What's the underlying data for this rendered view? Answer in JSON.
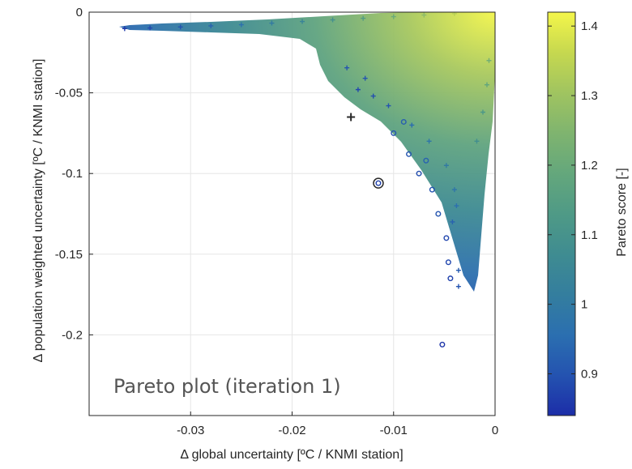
{
  "chart_data": {
    "type": "scatter",
    "title": "Pareto plot (iteration 1)",
    "xlabel": "Δ global uncertainty [ºC / KNMI station]",
    "ylabel": "Δ population weighted uncertainty [ºC / KNMI station]",
    "xlim": [
      -0.04,
      0
    ],
    "ylim": [
      -0.25,
      0
    ],
    "xticks": [
      -0.03,
      -0.02,
      -0.01,
      0
    ],
    "xtick_labels": [
      "-0.03",
      "-0.02",
      "-0.01",
      "0"
    ],
    "yticks": [
      0,
      -0.05,
      -0.1,
      -0.15,
      -0.2
    ],
    "ytick_labels": [
      "0",
      "-0.05",
      "-0.1",
      "-0.15",
      "-0.2"
    ],
    "grid": true,
    "colorbar": {
      "label": "Pareto score [-]",
      "range": [
        0.84,
        1.42
      ],
      "ticks": [
        0.9,
        1,
        1.1,
        1.2,
        1.3,
        1.4
      ],
      "tick_labels": [
        "0.9",
        "1",
        "1.1",
        "1.2",
        "1.3",
        "1.4"
      ],
      "colormap": [
        "#1c2da8",
        "#2453b0",
        "#2b6fb0",
        "#347e9e",
        "#3f8c91",
        "#4f9a86",
        "#64a77c",
        "#7fb46f",
        "#a0c460",
        "#c6d84f",
        "#f4f64a"
      ]
    },
    "series": [
      {
        "marker": "+",
        "values": [
          [
            -0.0365,
            -0.0102,
            0.86
          ],
          [
            -0.034,
            -0.0098,
            0.88
          ],
          [
            -0.031,
            -0.0092,
            0.9
          ],
          [
            -0.028,
            -0.0085,
            0.93
          ],
          [
            -0.025,
            -0.0078,
            0.96
          ],
          [
            -0.022,
            -0.0068,
            1.0
          ],
          [
            -0.019,
            -0.0058,
            1.04
          ],
          [
            -0.016,
            -0.0048,
            1.09
          ],
          [
            -0.013,
            -0.0038,
            1.14
          ],
          [
            -0.01,
            -0.0028,
            1.2
          ],
          [
            -0.007,
            -0.0018,
            1.27
          ],
          [
            -0.004,
            -0.0009,
            1.34
          ],
          [
            -0.0146,
            -0.0345,
            0.9
          ],
          [
            -0.0128,
            -0.041,
            0.9
          ],
          [
            -0.0135,
            -0.048,
            0.88
          ],
          [
            -0.012,
            -0.052,
            0.89
          ],
          [
            -0.0142,
            -0.065,
            0.86
          ],
          [
            -0.0105,
            -0.058,
            0.9
          ],
          [
            -0.0082,
            -0.07,
            0.95
          ],
          [
            -0.0065,
            -0.08,
            0.98
          ],
          [
            -0.0048,
            -0.095,
            1.0
          ],
          [
            -0.004,
            -0.11,
            0.98
          ],
          [
            -0.0038,
            -0.12,
            0.96
          ],
          [
            -0.0042,
            -0.13,
            0.93
          ],
          [
            -0.0036,
            -0.16,
            0.91
          ],
          [
            -0.0036,
            -0.17,
            0.9
          ],
          [
            -0.0018,
            -0.08,
            1.08
          ],
          [
            -0.0012,
            -0.062,
            1.12
          ],
          [
            -0.0008,
            -0.045,
            1.18
          ],
          [
            -0.0006,
            -0.03,
            1.22
          ]
        ]
      },
      {
        "marker": "o",
        "values": [
          [
            -0.0115,
            -0.106,
            0.87
          ],
          [
            -0.0052,
            -0.206,
            0.85
          ],
          [
            -0.01,
            -0.075,
            0.9
          ],
          [
            -0.0085,
            -0.088,
            0.9
          ],
          [
            -0.0075,
            -0.1,
            0.89
          ],
          [
            -0.0062,
            -0.11,
            0.9
          ],
          [
            -0.0056,
            -0.125,
            0.9
          ],
          [
            -0.0048,
            -0.14,
            0.88
          ],
          [
            -0.0046,
            -0.155,
            0.88
          ],
          [
            -0.0044,
            -0.165,
            0.87
          ],
          [
            -0.0068,
            -0.092,
            0.93
          ],
          [
            -0.009,
            -0.068,
            0.92
          ]
        ]
      }
    ],
    "highlighted": [
      {
        "marker": "+",
        "x": -0.0142,
        "y": -0.065,
        "color": "#2a2a2a"
      },
      {
        "marker": "o",
        "x": -0.0115,
        "y": -0.106,
        "color": "#2a2a2a"
      }
    ]
  }
}
